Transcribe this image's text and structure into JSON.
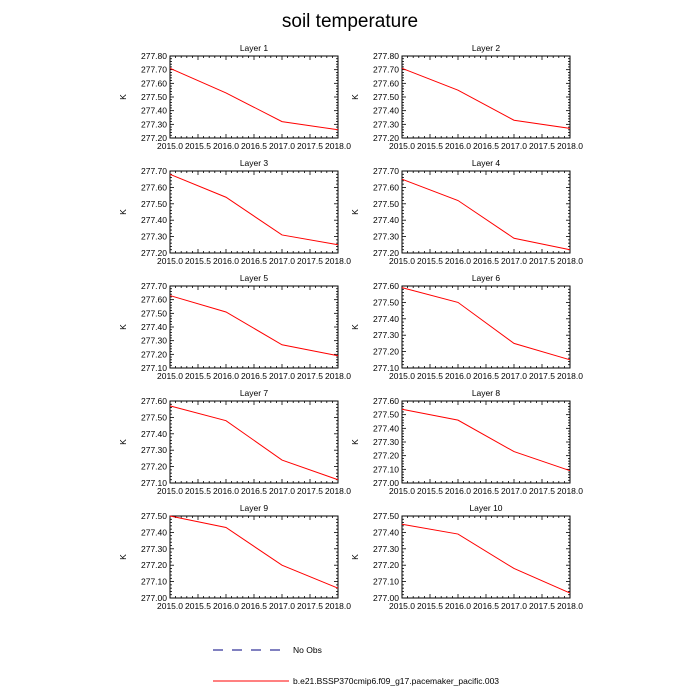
{
  "figure": {
    "title": "soil temperature"
  },
  "colors": {
    "series_line": "#ff0000",
    "obs_line": "#000080",
    "axis": "#000000"
  },
  "legend": [
    {
      "label": "No Obs",
      "style": "dashed",
      "color": "#000080"
    },
    {
      "label": "b.e21.BSSP370cmip6.f09_g17.pacemaker_pacific.003",
      "style": "solid",
      "color": "#ff0000"
    }
  ],
  "chart_data": [
    {
      "type": "line",
      "title": "Layer 1",
      "xlabel": "",
      "ylabel": "K",
      "xlim": [
        2015.0,
        2018.0
      ],
      "ylim": [
        277.2,
        277.8
      ],
      "xticks": [
        "2015.0",
        "2015.5",
        "2016.0",
        "2016.5",
        "2017.0",
        "2017.5",
        "2018.0"
      ],
      "yticks": [
        "277.20",
        "277.30",
        "277.40",
        "277.50",
        "277.60",
        "277.70",
        "277.80"
      ],
      "series": [
        {
          "name": "b.e21.BSSP370cmip6.f09_g17.pacemaker_pacific.003",
          "x": [
            2015,
            2016,
            2017,
            2018
          ],
          "values": [
            277.71,
            277.53,
            277.32,
            277.26
          ]
        }
      ]
    },
    {
      "type": "line",
      "title": "Layer 2",
      "xlabel": "",
      "ylabel": "K",
      "xlim": [
        2015.0,
        2018.0
      ],
      "ylim": [
        277.2,
        277.8
      ],
      "xticks": [
        "2015.0",
        "2015.5",
        "2016.0",
        "2016.5",
        "2017.0",
        "2017.5",
        "2018.0"
      ],
      "yticks": [
        "277.20",
        "277.30",
        "277.40",
        "277.50",
        "277.60",
        "277.70",
        "277.80"
      ],
      "series": [
        {
          "name": "b.e21.BSSP370cmip6.f09_g17.pacemaker_pacific.003",
          "x": [
            2015,
            2016,
            2017,
            2018
          ],
          "values": [
            277.71,
            277.55,
            277.33,
            277.27
          ]
        }
      ]
    },
    {
      "type": "line",
      "title": "Layer 3",
      "xlabel": "",
      "ylabel": "K",
      "xlim": [
        2015.0,
        2018.0
      ],
      "ylim": [
        277.2,
        277.7
      ],
      "xticks": [
        "2015.0",
        "2015.5",
        "2016.0",
        "2016.5",
        "2017.0",
        "2017.5",
        "2018.0"
      ],
      "yticks": [
        "277.20",
        "277.30",
        "277.40",
        "277.50",
        "277.60",
        "277.70"
      ],
      "series": [
        {
          "name": "b.e21.BSSP370cmip6.f09_g17.pacemaker_pacific.003",
          "x": [
            2015,
            2016,
            2017,
            2018
          ],
          "values": [
            277.68,
            277.54,
            277.31,
            277.25
          ]
        }
      ]
    },
    {
      "type": "line",
      "title": "Layer 4",
      "xlabel": "",
      "ylabel": "K",
      "xlim": [
        2015.0,
        2018.0
      ],
      "ylim": [
        277.2,
        277.7
      ],
      "xticks": [
        "2015.0",
        "2015.5",
        "2016.0",
        "2016.5",
        "2017.0",
        "2017.5",
        "2018.0"
      ],
      "yticks": [
        "277.20",
        "277.30",
        "277.40",
        "277.50",
        "277.60",
        "277.70"
      ],
      "series": [
        {
          "name": "b.e21.BSSP370cmip6.f09_g17.pacemaker_pacific.003",
          "x": [
            2015,
            2016,
            2017,
            2018
          ],
          "values": [
            277.65,
            277.52,
            277.29,
            277.22
          ]
        }
      ]
    },
    {
      "type": "line",
      "title": "Layer 5",
      "xlabel": "",
      "ylabel": "K",
      "xlim": [
        2015.0,
        2018.0
      ],
      "ylim": [
        277.1,
        277.7
      ],
      "xticks": [
        "2015.0",
        "2015.5",
        "2016.0",
        "2016.5",
        "2017.0",
        "2017.5",
        "2018.0"
      ],
      "yticks": [
        "277.10",
        "277.20",
        "277.30",
        "277.40",
        "277.50",
        "277.60",
        "277.70"
      ],
      "series": [
        {
          "name": "b.e21.BSSP370cmip6.f09_g17.pacemaker_pacific.003",
          "x": [
            2015,
            2016,
            2017,
            2018
          ],
          "values": [
            277.63,
            277.51,
            277.27,
            277.19
          ]
        }
      ]
    },
    {
      "type": "line",
      "title": "Layer 6",
      "xlabel": "",
      "ylabel": "K",
      "xlim": [
        2015.0,
        2018.0
      ],
      "ylim": [
        277.1,
        277.6
      ],
      "xticks": [
        "2015.0",
        "2015.5",
        "2016.0",
        "2016.5",
        "2017.0",
        "2017.5",
        "2018.0"
      ],
      "yticks": [
        "277.10",
        "277.20",
        "277.30",
        "277.40",
        "277.50",
        "277.60"
      ],
      "series": [
        {
          "name": "b.e21.BSSP370cmip6.f09_g17.pacemaker_pacific.003",
          "x": [
            2015,
            2016,
            2017,
            2018
          ],
          "values": [
            277.59,
            277.5,
            277.25,
            277.15
          ]
        }
      ]
    },
    {
      "type": "line",
      "title": "Layer 7",
      "xlabel": "",
      "ylabel": "K",
      "xlim": [
        2015.0,
        2018.0
      ],
      "ylim": [
        277.1,
        277.6
      ],
      "xticks": [
        "2015.0",
        "2015.5",
        "2016.0",
        "2016.5",
        "2017.0",
        "2017.5",
        "2018.0"
      ],
      "yticks": [
        "277.10",
        "277.20",
        "277.30",
        "277.40",
        "277.50",
        "277.60"
      ],
      "series": [
        {
          "name": "b.e21.BSSP370cmip6.f09_g17.pacemaker_pacific.003",
          "x": [
            2015,
            2016,
            2017,
            2018
          ],
          "values": [
            277.57,
            277.48,
            277.24,
            277.12
          ]
        }
      ]
    },
    {
      "type": "line",
      "title": "Layer 8",
      "xlabel": "",
      "ylabel": "K",
      "xlim": [
        2015.0,
        2018.0
      ],
      "ylim": [
        277.0,
        277.6
      ],
      "xticks": [
        "2015.0",
        "2015.5",
        "2016.0",
        "2016.5",
        "2017.0",
        "2017.5",
        "2018.0"
      ],
      "yticks": [
        "277.00",
        "277.10",
        "277.20",
        "277.30",
        "277.40",
        "277.50",
        "277.60"
      ],
      "series": [
        {
          "name": "b.e21.BSSP370cmip6.f09_g17.pacemaker_pacific.003",
          "x": [
            2015,
            2016,
            2017,
            2018
          ],
          "values": [
            277.54,
            277.46,
            277.23,
            277.09
          ]
        }
      ]
    },
    {
      "type": "line",
      "title": "Layer 9",
      "xlabel": "",
      "ylabel": "K",
      "xlim": [
        2015.0,
        2018.0
      ],
      "ylim": [
        277.0,
        277.5
      ],
      "xticks": [
        "2015.0",
        "2015.5",
        "2016.0",
        "2016.5",
        "2017.0",
        "2017.5",
        "2018.0"
      ],
      "yticks": [
        "277.00",
        "277.10",
        "277.20",
        "277.30",
        "277.40",
        "277.50"
      ],
      "series": [
        {
          "name": "b.e21.BSSP370cmip6.f09_g17.pacemaker_pacific.003",
          "x": [
            2015,
            2016,
            2017,
            2018
          ],
          "values": [
            277.5,
            277.43,
            277.2,
            277.06
          ]
        }
      ]
    },
    {
      "type": "line",
      "title": "Layer 10",
      "xlabel": "",
      "ylabel": "K",
      "xlim": [
        2015.0,
        2018.0
      ],
      "ylim": [
        277.0,
        277.5
      ],
      "xticks": [
        "2015.0",
        "2015.5",
        "2016.0",
        "2016.5",
        "2017.0",
        "2017.5",
        "2018.0"
      ],
      "yticks": [
        "277.00",
        "277.10",
        "277.20",
        "277.30",
        "277.40",
        "277.50"
      ],
      "series": [
        {
          "name": "b.e21.BSSP370cmip6.f09_g17.pacemaker_pacific.003",
          "x": [
            2015,
            2016,
            2017,
            2018
          ],
          "values": [
            277.45,
            277.39,
            277.18,
            277.03
          ]
        }
      ]
    }
  ]
}
